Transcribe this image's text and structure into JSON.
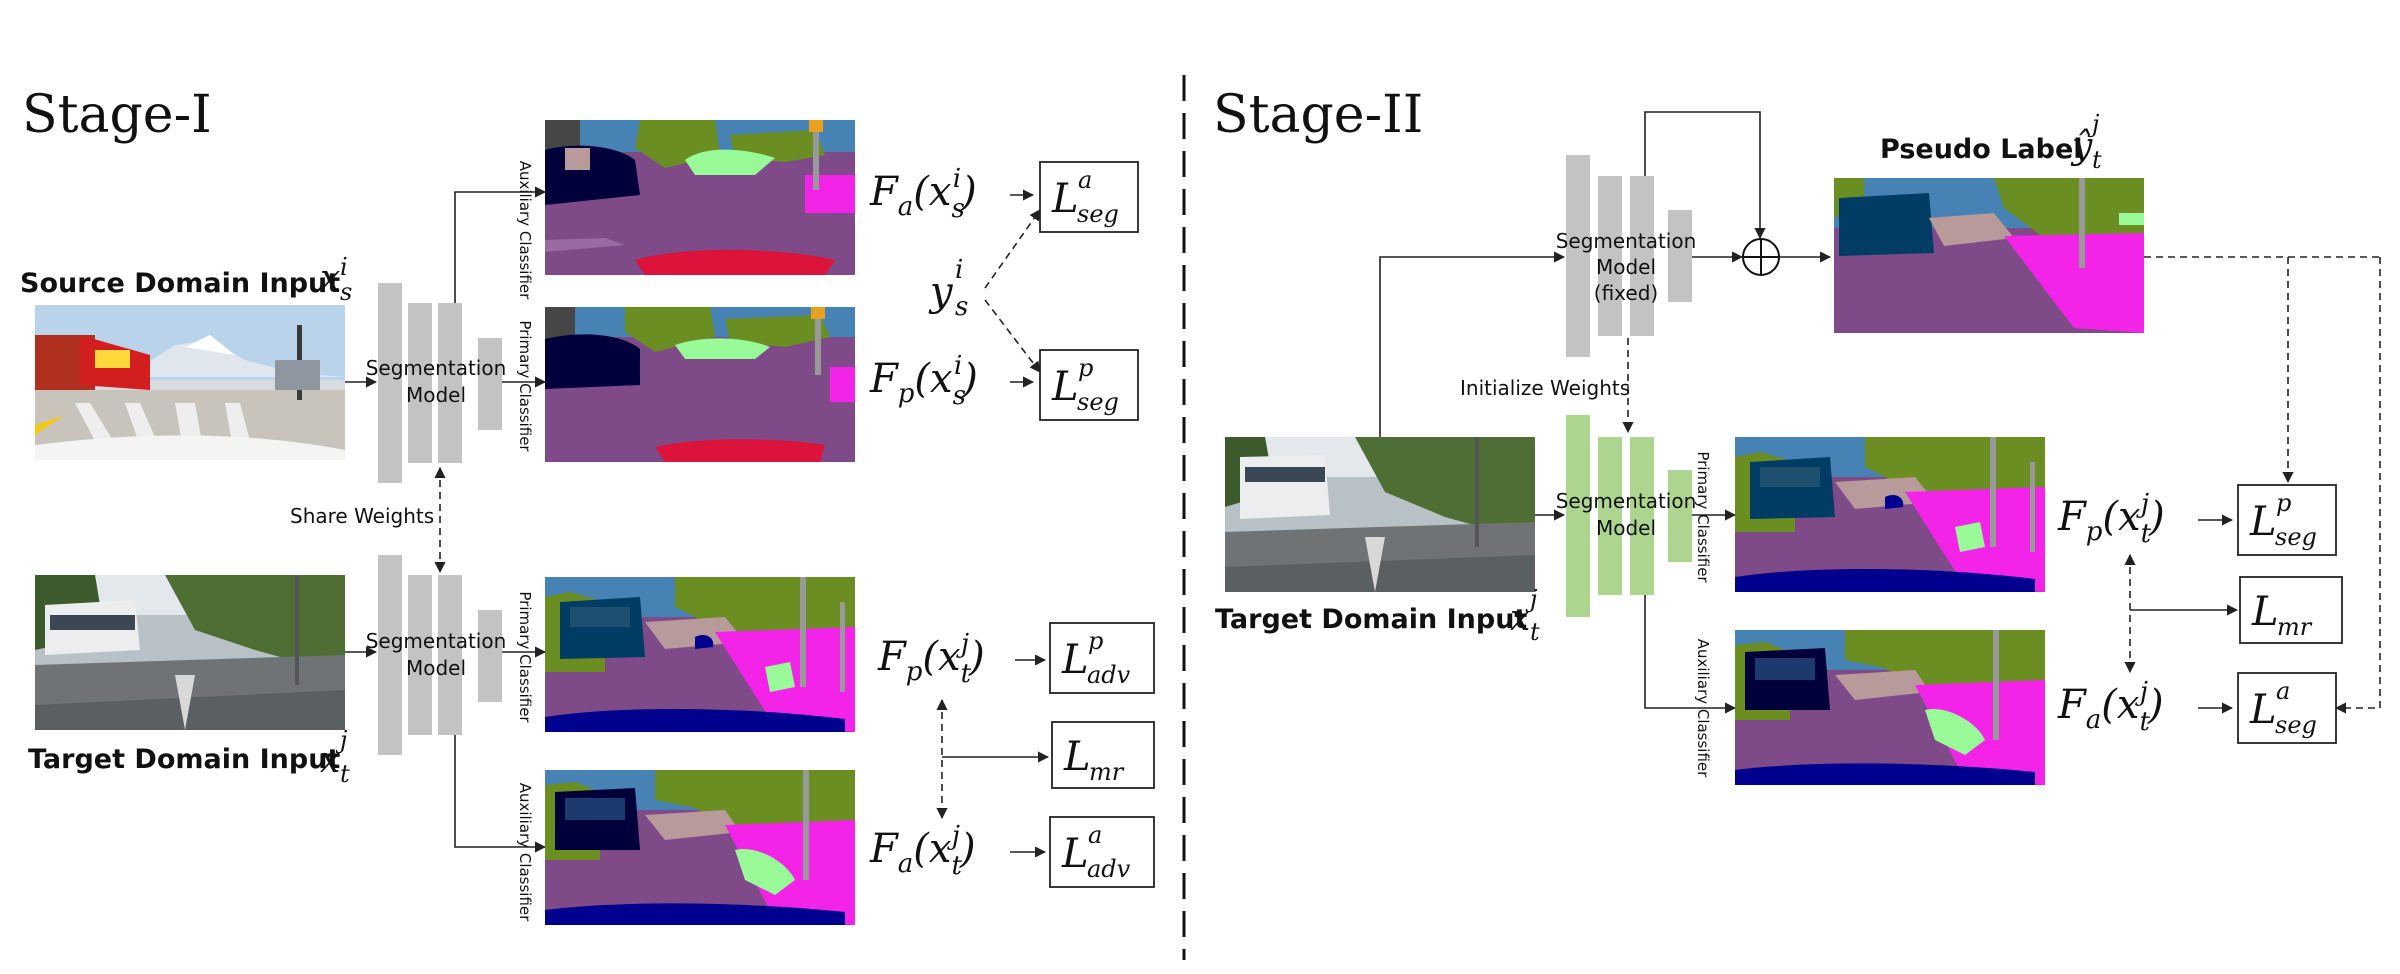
{
  "stage1": {
    "title": "Stage-I",
    "source_input_label": "Source Domain Input",
    "target_input_label": "Target Domain Input",
    "share_weights_label": "Share Weights",
    "model_label_line1": "Segmentation",
    "model_label_line2": "Model",
    "aux_classifier_label": "Auxiliary Classifier",
    "primary_classifier_label": "Primary Classifier",
    "losses": {
      "seg_a": {
        "main": "L",
        "sup": "a",
        "sub": "seg"
      },
      "seg_p": {
        "main": "L",
        "sup": "p",
        "sub": "seg"
      },
      "adv_p": {
        "main": "L",
        "sup": "p",
        "sub": "adv"
      },
      "mr": {
        "main": "L",
        "sub": "mr"
      },
      "adv_a": {
        "main": "L",
        "sup": "a",
        "sub": "adv"
      }
    }
  },
  "stage2": {
    "title": "Stage-II",
    "pseudo_label_text": "Pseudo Label",
    "fixed_model_line1": "Segmentation",
    "fixed_model_line2": "Model",
    "fixed_model_line3": "(fixed)",
    "initialize_weights_label": "Initialize Weights",
    "model_label_line1": "Segmentation",
    "model_label_line2": "Model",
    "primary_classifier_label": "Primary Classifier",
    "aux_classifier_label": "Auxiliary Classifier",
    "target_input_label": "Target Domain Input",
    "losses": {
      "seg_p": {
        "main": "L",
        "sup": "p",
        "sub": "seg"
      },
      "mr": {
        "main": "L",
        "sub": "mr"
      },
      "seg_a": {
        "main": "L",
        "sup": "a",
        "sub": "seg"
      }
    }
  },
  "colors": {
    "road": "#7e4a87",
    "vegetation": "#6b8e23",
    "sky": "#4682b4",
    "building": "#464646",
    "car": "#00008e",
    "sidewalk": "#f423e8",
    "terrain": "#98fb98",
    "wall": "#b99a9a",
    "bus": "#003c64",
    "truck_red": "#dc143c",
    "pole": "#999999",
    "model_gray": "#c3c3c3",
    "model_green": "#aed58f"
  }
}
